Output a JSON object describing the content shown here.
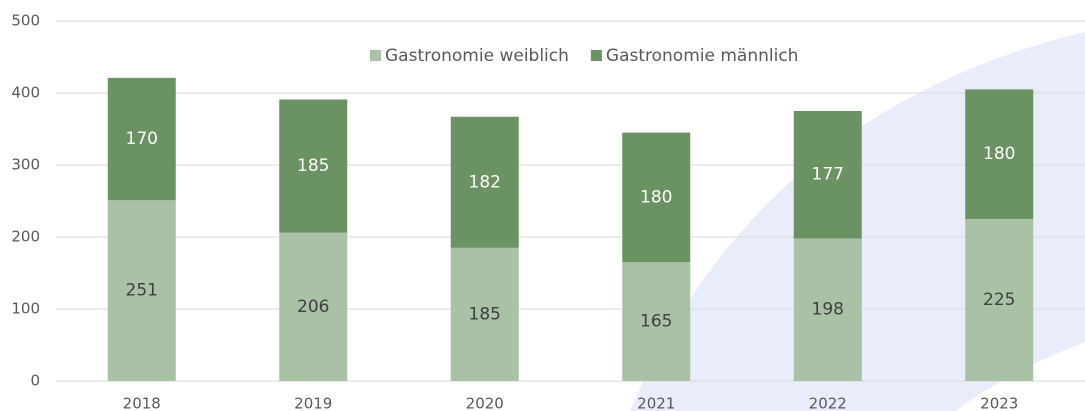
{
  "chart_data": {
    "type": "bar",
    "stacked": true,
    "categories": [
      "2018",
      "2019",
      "2020",
      "2021",
      "2022",
      "2023"
    ],
    "series": [
      {
        "name": "Gastronomie weiblich",
        "color": "#a9c2a6",
        "label_color": "#404040",
        "values": [
          251,
          206,
          185,
          165,
          198,
          225
        ]
      },
      {
        "name": "Gastronomie männlich",
        "color": "#6a9263",
        "label_color": "#ffffff",
        "values": [
          170,
          185,
          182,
          180,
          177,
          180
        ]
      }
    ],
    "ylim": [
      0,
      500
    ],
    "yticks": [
      0,
      100,
      200,
      300,
      400,
      500
    ],
    "grid": true,
    "legend": "top"
  }
}
